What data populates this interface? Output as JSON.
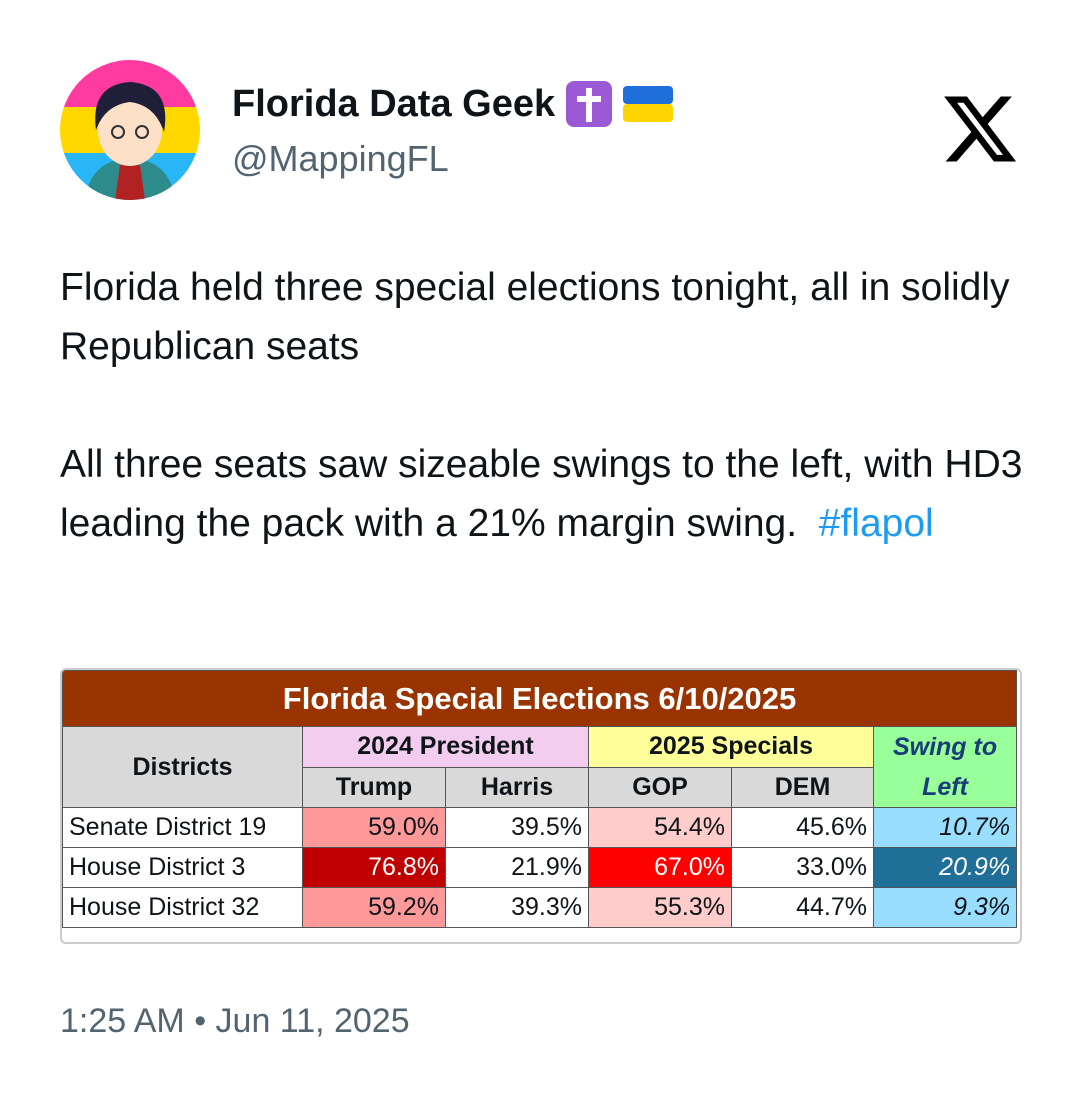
{
  "author": {
    "name": "Florida Data Geek",
    "handle": "@MappingFL"
  },
  "text": {
    "paragraphs": [
      "Florida held three special elections tonight, all in solidly Republican seats",
      "All three seats saw sizeable swings to the left, with HD3 leading the pack with a 21% margin swing."
    ],
    "hashtag": "#flapol"
  },
  "table": {
    "title": "Florida Special Elections 6/10/2025",
    "header": [
      "Districts",
      "2024 President",
      "2025 Specials",
      "Swing to Left"
    ],
    "subheader": [
      "Trump",
      "Harris",
      "GOP",
      "DEM"
    ],
    "rows": [
      [
        "Senate District 19",
        "59.0%",
        "39.5%",
        "54.4%",
        "45.6%",
        "10.7%"
      ],
      [
        "House District 3",
        "76.8%",
        "21.9%",
        "67.0%",
        "33.0%",
        "20.9%"
      ],
      [
        "House District 32",
        "59.2%",
        "39.3%",
        "55.3%",
        "44.7%",
        "9.3%"
      ]
    ]
  },
  "timestamp": "1:25 AM • Jun 11, 2025"
}
